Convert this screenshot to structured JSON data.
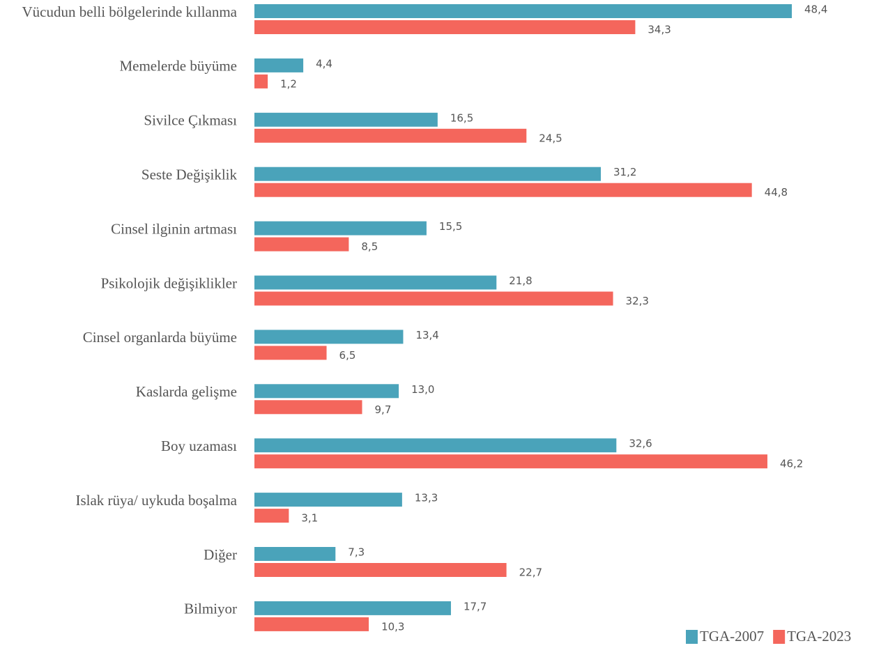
{
  "chart_data": {
    "type": "bar",
    "orientation": "horizontal",
    "categories": [
      "Vücudun belli bölgelerinde kıllanma",
      "Memelerde büyüme",
      "Sivilce Çıkması",
      "Seste Değişiklik",
      "Cinsel ilginin artması",
      "Psikolojik değişiklikler",
      "Cinsel organlarda büyüme",
      "Kaslarda gelişme",
      "Boy uzaması",
      "Islak rüya/ uykuda boşalma",
      "Diğer",
      "Bilmiyor"
    ],
    "series": [
      {
        "name": "TGA-2007",
        "color": "#4aa3ba",
        "values": [
          48.4,
          4.4,
          16.5,
          31.2,
          15.5,
          21.8,
          13.4,
          13.0,
          32.6,
          13.3,
          7.3,
          17.7
        ],
        "value_labels": [
          "48,4",
          "4,4",
          "16,5",
          "31,2",
          "15,5",
          "21,8",
          "13,4",
          "13,0",
          "32,6",
          "13,3",
          "7,3",
          "17,7"
        ]
      },
      {
        "name": "TGA-2023",
        "color": "#f4665c",
        "values": [
          34.3,
          1.2,
          24.5,
          44.8,
          8.5,
          32.3,
          6.5,
          9.7,
          46.2,
          3.1,
          22.7,
          10.3
        ],
        "value_labels": [
          "34,3",
          "1,2",
          "24,5",
          "44,8",
          "8,5",
          "32,3",
          "6,5",
          "9,7",
          "46,2",
          "3,1",
          "22,7",
          "10,3"
        ]
      }
    ],
    "legend": "bottom-right"
  }
}
